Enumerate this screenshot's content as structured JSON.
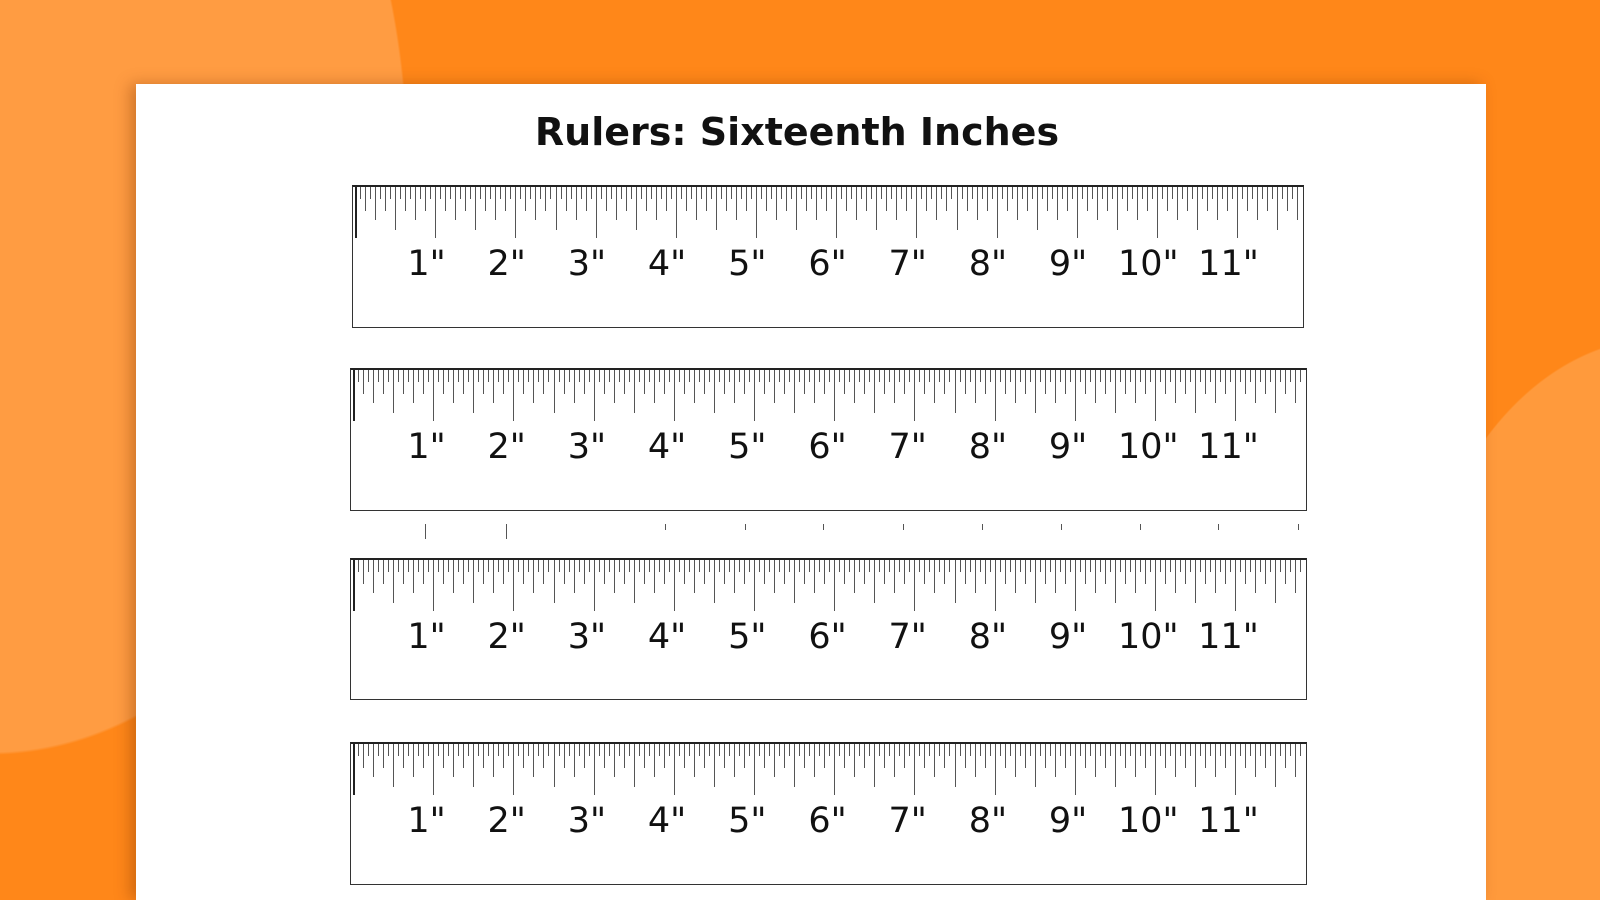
{
  "title": "Rulers: Sixteenth Inches",
  "colors": {
    "background": "#ff8719",
    "accent_blob": "#ff9c42",
    "paper": "#ffffff"
  },
  "rulers": [
    {
      "unit": "sixteenth inch",
      "labels": [
        "1\"",
        "2\"",
        "3\"",
        "4\"",
        "5\"",
        "6\"",
        "7\"",
        "8\"",
        "9\"",
        "10\"",
        "11\""
      ]
    },
    {
      "unit": "sixteenth inch",
      "labels": [
        "1\"",
        "2\"",
        "3\"",
        "4\"",
        "5\"",
        "6\"",
        "7\"",
        "8\"",
        "9\"",
        "10\"",
        "11\""
      ]
    },
    {
      "unit": "sixteenth inch",
      "labels": [
        "1\"",
        "2\"",
        "3\"",
        "4\"",
        "5\"",
        "6\"",
        "7\"",
        "8\"",
        "9\"",
        "10\"",
        "11\""
      ]
    },
    {
      "unit": "sixteenth inch",
      "labels": [
        "1\"",
        "2\"",
        "3\"",
        "4\"",
        "5\"",
        "6\"",
        "7\"",
        "8\"",
        "9\"",
        "10\"",
        "11\""
      ]
    }
  ]
}
